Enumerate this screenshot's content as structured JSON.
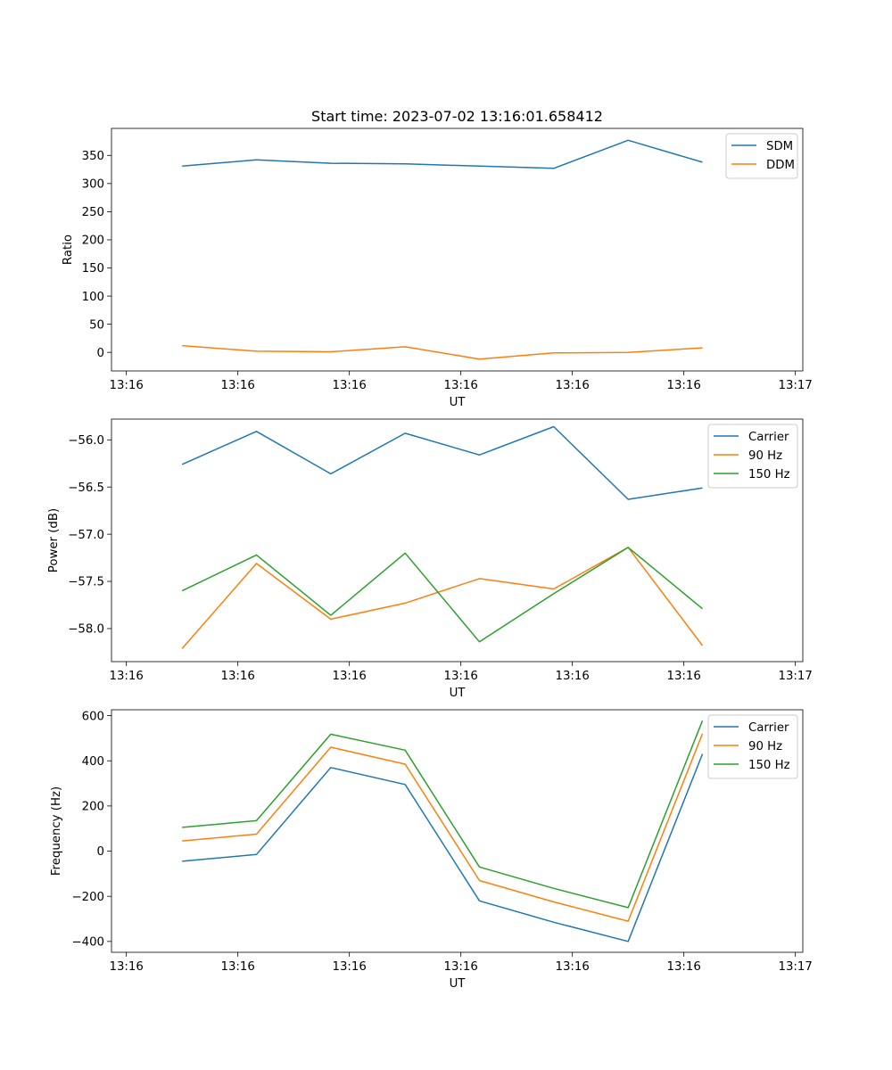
{
  "chart_data": [
    {
      "type": "line",
      "title": "Start time: 2023-07-02 13:16:01.658412",
      "xlabel": "UT",
      "ylabel": "Ratio",
      "xlim": [
        -0.8,
        8.5
      ],
      "ylim": [
        -33,
        398
      ],
      "x_ticks": [
        -0.6,
        0.9,
        2.4,
        3.9,
        5.4,
        6.9,
        8.4
      ],
      "x_tick_labels": [
        "13:16",
        "13:16",
        "13:16",
        "13:16",
        "13:16",
        "13:16",
        "13:17"
      ],
      "y_ticks": [
        0,
        50,
        100,
        150,
        200,
        250,
        300,
        350
      ],
      "y_tick_labels": [
        "0",
        "50",
        "100",
        "150",
        "200",
        "250",
        "300",
        "350"
      ],
      "legend": "top-right",
      "x": [
        0.15,
        1.15,
        2.15,
        3.15,
        4.15,
        5.15,
        6.15,
        7.15
      ],
      "series": [
        {
          "name": "SDM",
          "color": "#1f77b4",
          "values": [
            331,
            342,
            336,
            335,
            331,
            327,
            377,
            338
          ]
        },
        {
          "name": "DDM",
          "color": "#ff7f0e",
          "values": [
            12,
            2,
            1,
            10,
            -12,
            -1,
            0,
            8
          ]
        }
      ]
    },
    {
      "type": "line",
      "title": "",
      "xlabel": "UT",
      "ylabel": "Power (dB)",
      "xlim": [
        -0.8,
        8.5
      ],
      "ylim": [
        -58.35,
        -55.78
      ],
      "x_ticks": [
        -0.6,
        0.9,
        2.4,
        3.9,
        5.4,
        6.9,
        8.4
      ],
      "x_tick_labels": [
        "13:16",
        "13:16",
        "13:16",
        "13:16",
        "13:16",
        "13:16",
        "13:17"
      ],
      "y_ticks": [
        -58.0,
        -57.5,
        -57.0,
        -56.5,
        -56.0
      ],
      "y_tick_labels": [
        "−58.0",
        "−57.5",
        "−57.0",
        "−56.5",
        "−56.0"
      ],
      "legend": "top-right",
      "x": [
        0.15,
        1.15,
        2.15,
        3.15,
        4.15,
        5.15,
        6.15,
        7.15
      ],
      "series": [
        {
          "name": "Carrier",
          "color": "#1f77b4",
          "values": [
            -56.26,
            -55.91,
            -56.36,
            -55.93,
            -56.16,
            -55.86,
            -56.63,
            -56.51
          ]
        },
        {
          "name": "90 Hz",
          "color": "#ff7f0e",
          "values": [
            -58.21,
            -57.31,
            -57.9,
            -57.73,
            -57.47,
            -57.58,
            -57.14,
            -58.18
          ]
        },
        {
          "name": "150 Hz",
          "color": "#2ca02c",
          "values": [
            -57.6,
            -57.22,
            -57.86,
            -57.2,
            -58.14,
            -57.63,
            -57.14,
            -57.79
          ]
        }
      ]
    },
    {
      "type": "line",
      "title": "",
      "xlabel": "UT",
      "ylabel": "Frequency (Hz)",
      "xlim": [
        -0.8,
        8.5
      ],
      "ylim": [
        -448,
        626
      ],
      "x_ticks": [
        -0.6,
        0.9,
        2.4,
        3.9,
        5.4,
        6.9,
        8.4
      ],
      "x_tick_labels": [
        "13:16",
        "13:16",
        "13:16",
        "13:16",
        "13:16",
        "13:16",
        "13:17"
      ],
      "y_ticks": [
        -400,
        -200,
        0,
        200,
        400,
        600
      ],
      "y_tick_labels": [
        "−400",
        "−200",
        "0",
        "200",
        "400",
        "600"
      ],
      "legend": "top-right",
      "x": [
        0.15,
        1.15,
        2.15,
        3.15,
        4.15,
        5.15,
        6.15,
        7.15
      ],
      "series": [
        {
          "name": "Carrier",
          "color": "#1f77b4",
          "values": [
            -45,
            -15,
            370,
            295,
            -220,
            -315,
            -400,
            430
          ]
        },
        {
          "name": "90 Hz",
          "color": "#ff7f0e",
          "values": [
            45,
            75,
            460,
            385,
            -130,
            -225,
            -310,
            520
          ]
        },
        {
          "name": "150 Hz",
          "color": "#2ca02c",
          "values": [
            105,
            135,
            518,
            447,
            -70,
            -165,
            -250,
            578
          ]
        }
      ]
    }
  ]
}
